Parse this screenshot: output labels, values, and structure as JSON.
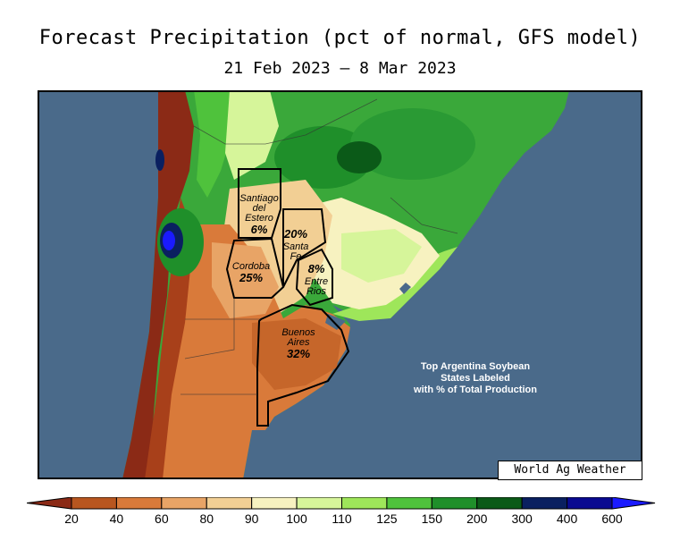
{
  "title": "Forecast Precipitation (pct of normal, GFS model)",
  "subtitle": "21 Feb 2023 — 8 Mar 2023",
  "credit": "World Ag Weather",
  "annotation": [
    "Top Argentina Soybean",
    "States Labeled",
    "with % of Total Production"
  ],
  "states": [
    {
      "name_lines": [
        "Santiago",
        "del",
        "Estero"
      ],
      "pct": "6%"
    },
    {
      "name_lines": [
        "Santa",
        "Fe"
      ],
      "pct": "20%"
    },
    {
      "name_lines": [
        "Cordoba"
      ],
      "pct": "25%"
    },
    {
      "name_lines": [
        "Entre",
        "Rios"
      ],
      "pct": "8%"
    },
    {
      "name_lines": [
        "Buenos",
        "Aires"
      ],
      "pct": "32%"
    }
  ],
  "legend": {
    "ticks": [
      "20",
      "40",
      "60",
      "80",
      "90",
      "100",
      "110",
      "125",
      "150",
      "200",
      "300",
      "400",
      "600"
    ],
    "colors": [
      "#8b2a16",
      "#b8561f",
      "#d97a3a",
      "#e8a466",
      "#f2cf94",
      "#f7f2c0",
      "#d6f59a",
      "#9ee65a",
      "#4fc23c",
      "#1f8f2a",
      "#0b5a18",
      "#0a2060",
      "#0a0a90",
      "#1a1aff"
    ],
    "ocean_color": "#4a6a8a"
  }
}
